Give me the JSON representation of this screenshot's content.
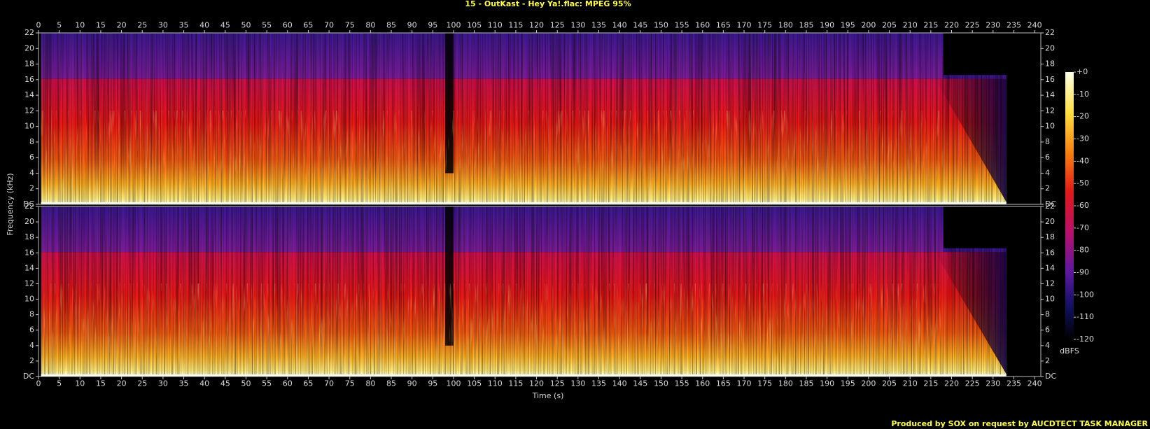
{
  "title": "15 - OutKast - Hey Ya!.flac: MPEG 95%",
  "x_label": "Time (s)",
  "y_label": "Frequency (kHz)",
  "footer": "Produced by SOX on request by AUCDTECT TASK MANAGER",
  "colorbar": {
    "label": "dBFS",
    "lim": [
      -120,
      0
    ],
    "ticks": [
      {
        "value": 0,
        "label": "+0"
      },
      -10,
      -20,
      -30,
      -40,
      -50,
      -60,
      -70,
      -80,
      -90,
      -100,
      -110,
      -120
    ]
  },
  "chart_data": [
    {
      "type": "spectrogram",
      "xlim": [
        0,
        241.5
      ],
      "xticks": [
        0,
        5,
        10,
        15,
        20,
        25,
        30,
        35,
        40,
        45,
        50,
        55,
        60,
        65,
        70,
        75,
        80,
        85,
        90,
        95,
        100,
        105,
        110,
        115,
        120,
        125,
        130,
        135,
        140,
        145,
        150,
        155,
        160,
        165,
        170,
        175,
        180,
        185,
        190,
        195,
        200,
        205,
        210,
        215,
        220,
        225,
        230,
        235,
        240
      ],
      "ylim": [
        0,
        22
      ],
      "yticks": [
        {
          "value": 0,
          "label": "DC"
        },
        2,
        4,
        6,
        8,
        10,
        12,
        14,
        16,
        18,
        20,
        22
      ]
    },
    {
      "type": "spectrogram",
      "xlim": [
        0,
        241.5
      ],
      "xticks": [
        0,
        5,
        10,
        15,
        20,
        25,
        30,
        35,
        40,
        45,
        50,
        55,
        60,
        65,
        70,
        75,
        80,
        85,
        90,
        95,
        100,
        105,
        110,
        115,
        120,
        125,
        130,
        135,
        140,
        145,
        150,
        155,
        160,
        165,
        170,
        175,
        180,
        185,
        190,
        195,
        200,
        205,
        210,
        215,
        220,
        225,
        230,
        235,
        240
      ],
      "ylim": [
        0,
        22
      ],
      "yticks": [
        {
          "value": 0,
          "label": "DC"
        },
        2,
        4,
        6,
        8,
        10,
        12,
        14,
        16,
        18,
        20,
        22
      ]
    }
  ]
}
